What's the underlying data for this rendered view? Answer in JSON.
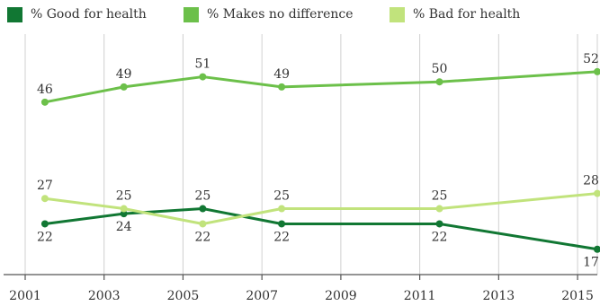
{
  "chart_data": {
    "type": "line",
    "x": [
      2001.5,
      2003.5,
      2005.5,
      2007.5,
      2011.5,
      2015.5
    ],
    "x_ticks": [
      "2001",
      "2003",
      "2005",
      "2007",
      "2009",
      "2011",
      "2013",
      "2015"
    ],
    "x_tick_values": [
      2001,
      2003,
      2005,
      2007,
      2009,
      2011,
      2013,
      2015
    ],
    "xlim": [
      2001,
      2015.5
    ],
    "ylim": [
      12,
      58
    ],
    "grid": "vertical",
    "legend_position": "top",
    "series": [
      {
        "name": "% Good for health",
        "color": "#117733",
        "values": [
          22,
          24,
          25,
          22,
          22,
          17
        ],
        "labels": [
          "22",
          "24",
          "25",
          "22",
          "22",
          "17"
        ],
        "label_pos": [
          "below",
          "below",
          "above",
          "below",
          "below",
          "below"
        ]
      },
      {
        "name": "% Makes no difference",
        "color": "#6cc04a",
        "values": [
          46,
          49,
          51,
          49,
          50,
          52
        ],
        "labels": [
          "46",
          "49",
          "51",
          "49",
          "50",
          "52"
        ],
        "label_pos": [
          "above",
          "above",
          "above",
          "above",
          "above",
          "above"
        ]
      },
      {
        "name": "% Bad for health",
        "color": "#c1e37c",
        "values": [
          27,
          25,
          22,
          25,
          25,
          28
        ],
        "labels": [
          "27",
          "25",
          "22",
          "25",
          "25",
          "28"
        ],
        "label_pos": [
          "above",
          "above",
          "below",
          "above",
          "above",
          "above"
        ]
      }
    ]
  }
}
